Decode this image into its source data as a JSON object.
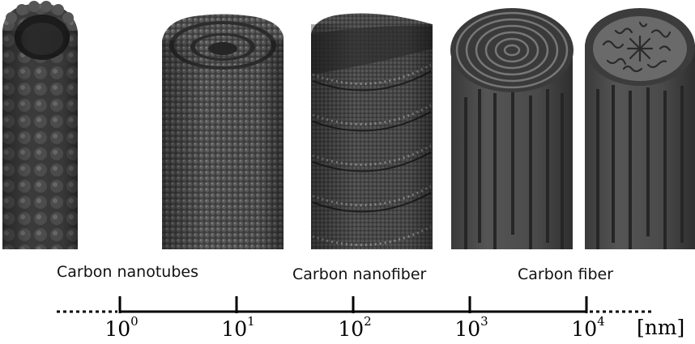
{
  "categories": [
    {
      "label": "Carbon nanotubes"
    },
    {
      "label": "Carbon nanofiber"
    },
    {
      "label": "Carbon fiber"
    }
  ],
  "scale": {
    "base": "10",
    "exponents": [
      "0",
      "1",
      "2",
      "3",
      "4"
    ],
    "unit": "[nm]"
  }
}
